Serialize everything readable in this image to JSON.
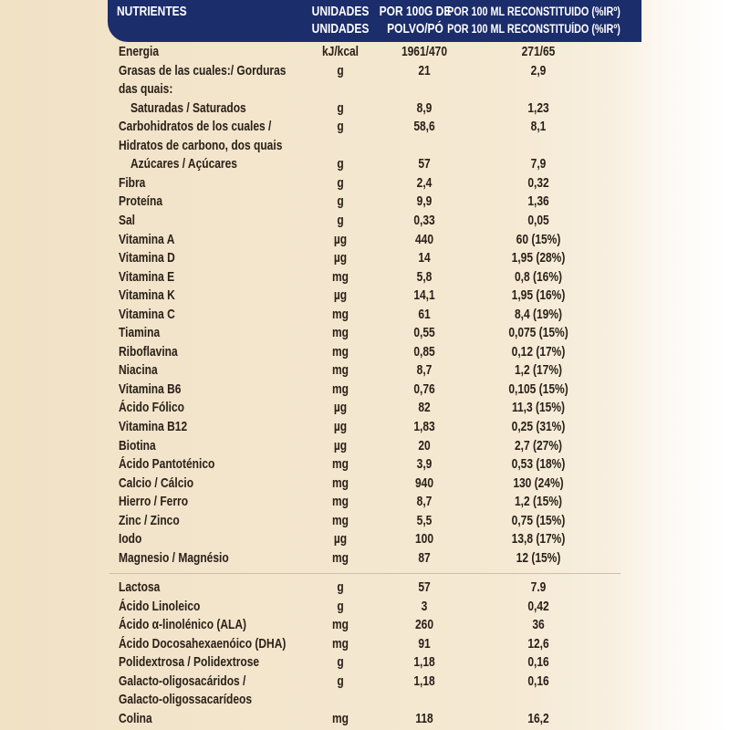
{
  "header": {
    "title": "NUTRIENTES",
    "columns": [
      [
        "UNIDADES",
        "UNIDADES"
      ],
      [
        "POR 100G DE",
        "POLVO/PÓ"
      ],
      [
        "POR 100 ML RECONSTITUIDO (%IRº)",
        "POR 100 ML RECONSTITUÍDO (%IRº)"
      ]
    ]
  },
  "sections": [
    {
      "rows": [
        {
          "name": [
            "Energia"
          ],
          "unit": "kJ/kcal",
          "per_100g": "1961/470",
          "per_100ml": "271/65"
        },
        {
          "name": [
            "Grasas de las cuales:/ Gorduras",
            "das quais:"
          ],
          "unit": "g",
          "per_100g": "21",
          "per_100ml": "2,9",
          "items": [
            {
              "name": [
                "Saturadas / Saturados"
              ],
              "unit": "g",
              "per_100g": "8,9",
              "per_100ml": "1,23"
            }
          ]
        },
        {
          "name": [
            "Carbohidratos de los cuales /",
            "Hidratos de carbono, dos quais"
          ],
          "unit": "g",
          "per_100g": "58,6",
          "per_100ml": "8,1",
          "items": [
            {
              "name": [
                "Azúcares / Açúcares"
              ],
              "unit": "g",
              "per_100g": "57",
              "per_100ml": "7,9"
            }
          ]
        },
        {
          "name": [
            "Fibra"
          ],
          "unit": "g",
          "per_100g": "2,4",
          "per_100ml": "0,32"
        },
        {
          "name": [
            "Proteína"
          ],
          "unit": "g",
          "per_100g": "9,9",
          "per_100ml": "1,36"
        },
        {
          "name": [
            "Sal"
          ],
          "unit": "g",
          "per_100g": "0,33",
          "per_100ml": "0,05"
        },
        {
          "name": [
            "Vitamina A"
          ],
          "unit": "µg",
          "per_100g": "440",
          "per_100ml": "60 (15%)"
        },
        {
          "name": [
            "Vitamina D"
          ],
          "unit": "µg",
          "per_100g": "14",
          "per_100ml": "1,95 (28%)"
        },
        {
          "name": [
            "Vitamina E"
          ],
          "unit": "mg",
          "per_100g": "5,8",
          "per_100ml": "0,8 (16%)"
        },
        {
          "name": [
            "Vitamina K"
          ],
          "unit": "µg",
          "per_100g": "14,1",
          "per_100ml": "1,95 (16%)"
        },
        {
          "name": [
            "Vitamina C"
          ],
          "unit": "mg",
          "per_100g": "61",
          "per_100ml": "8,4 (19%)"
        },
        {
          "name": [
            "Tiamina"
          ],
          "unit": "mg",
          "per_100g": "0,55",
          "per_100ml": "0,075 (15%)"
        },
        {
          "name": [
            "Riboflavina"
          ],
          "unit": "mg",
          "per_100g": "0,85",
          "per_100ml": "0,12 (17%)"
        },
        {
          "name": [
            "Niacina"
          ],
          "unit": "mg",
          "per_100g": "8,7",
          "per_100ml": "1,2 (17%)"
        },
        {
          "name": [
            "Vitamina B6"
          ],
          "unit": "mg",
          "per_100g": "0,76",
          "per_100ml": "0,105 (15%)"
        },
        {
          "name": [
            "Ácido Fólico"
          ],
          "unit": "µg",
          "per_100g": "82",
          "per_100ml": "11,3 (15%)"
        },
        {
          "name": [
            "Vitamina B12"
          ],
          "unit": "µg",
          "per_100g": "1,83",
          "per_100ml": "0,25 (31%)"
        },
        {
          "name": [
            "Biotina"
          ],
          "unit": "µg",
          "per_100g": "20",
          "per_100ml": "2,7 (27%)"
        },
        {
          "name": [
            "Ácido Pantoténico"
          ],
          "unit": "mg",
          "per_100g": "3,9",
          "per_100ml": "0,53 (18%)"
        },
        {
          "name": [
            "Calcio / Cálcio"
          ],
          "unit": "mg",
          "per_100g": "940",
          "per_100ml": "130 (24%)"
        },
        {
          "name": [
            "Hierro / Ferro"
          ],
          "unit": "mg",
          "per_100g": "8,7",
          "per_100ml": "1,2 (15%)"
        },
        {
          "name": [
            "Zinc / Zinco"
          ],
          "unit": "mg",
          "per_100g": "5,5",
          "per_100ml": "0,75 (15%)"
        },
        {
          "name": [
            "Iodo"
          ],
          "unit": "µg",
          "per_100g": "100",
          "per_100ml": "13,8 (17%)"
        },
        {
          "name": [
            "Magnesio / Magnésio"
          ],
          "unit": "mg",
          "per_100g": "87",
          "per_100ml": "12 (15%)"
        }
      ]
    },
    {
      "rows": [
        {
          "name": [
            "Lactosa"
          ],
          "unit": "g",
          "per_100g": "57",
          "per_100ml": "7.9"
        },
        {
          "name": [
            "Ácido Linoleico"
          ],
          "unit": "g",
          "per_100g": "3",
          "per_100ml": "0,42"
        },
        {
          "name": [
            "Ácido α-linolénico (ALA)"
          ],
          "unit": "mg",
          "per_100g": "260",
          "per_100ml": "36"
        },
        {
          "name": [
            "Ácido Docosahexaenóico (DHA)"
          ],
          "unit": "mg",
          "per_100g": "91",
          "per_100ml": "12,6"
        },
        {
          "name": [
            "Polidextrosa / Polidextrose"
          ],
          "unit": "g",
          "per_100g": "1,18",
          "per_100ml": "0,16"
        },
        {
          "name": [
            "Galacto-oligosacáridos /",
            "Galacto-oligossacarídeos"
          ],
          "unit": "g",
          "per_100g": "1,18",
          "per_100ml": "0,16"
        },
        {
          "name": [
            "Colina"
          ],
          "unit": "mg",
          "per_100g": "118",
          "per_100ml": "16,2"
        }
      ]
    }
  ]
}
